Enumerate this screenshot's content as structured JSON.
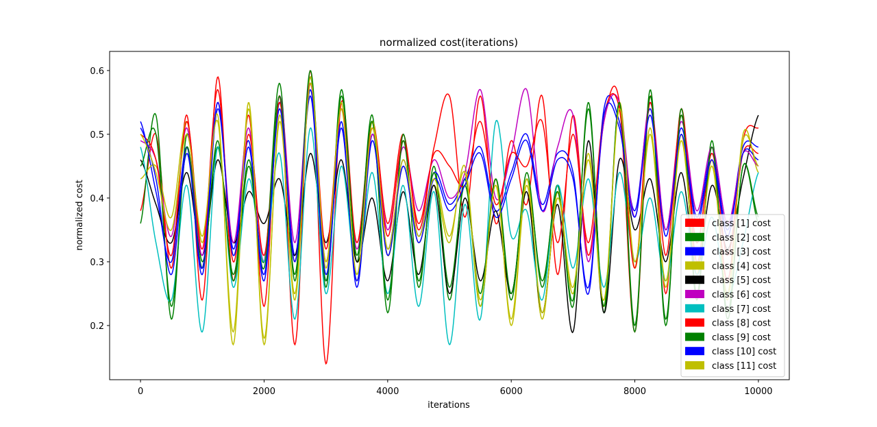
{
  "chart_data": {
    "type": "line",
    "title": "normalized cost(iterations)",
    "xlabel": "iterations",
    "ylabel": "normalized cost",
    "xlim": [
      -500,
      10500
    ],
    "ylim": [
      0.115,
      0.63
    ],
    "xticks": [
      0,
      2000,
      4000,
      6000,
      8000,
      10000
    ],
    "xtick_labels": [
      "0",
      "2000",
      "4000",
      "6000",
      "8000",
      "10000"
    ],
    "yticks": [
      0.2,
      0.3,
      0.4,
      0.5,
      0.6
    ],
    "ytick_labels": [
      "0.2",
      "0.3",
      "0.4",
      "0.5",
      "0.6"
    ],
    "grid": false,
    "legend_position": "lower-right",
    "x": [
      0,
      250,
      500,
      750,
      1000,
      1250,
      1500,
      1750,
      2000,
      2250,
      2500,
      2750,
      3000,
      3250,
      3500,
      3750,
      4000,
      4250,
      4500,
      4750,
      5000,
      5250,
      5500,
      5750,
      6000,
      6250,
      6500,
      6750,
      7000,
      7250,
      7500,
      7750,
      8000,
      8250,
      8500,
      8750,
      9000,
      9250,
      9500,
      9750,
      10000
    ],
    "series": [
      {
        "name": "class [1] cost",
        "color": "#ff0000",
        "values": [
          0.38,
          0.5,
          0.29,
          0.53,
          0.24,
          0.59,
          0.27,
          0.53,
          0.23,
          0.56,
          0.17,
          0.6,
          0.14,
          0.55,
          0.33,
          0.52,
          0.36,
          0.5,
          0.35,
          0.48,
          0.56,
          0.37,
          0.56,
          0.36,
          0.49,
          0.39,
          0.56,
          0.28,
          0.53,
          0.31,
          0.52,
          0.55,
          0.19,
          0.56,
          0.25,
          0.54,
          0.3,
          0.46,
          0.27,
          0.49,
          0.51
        ]
      },
      {
        "name": "class [2] cost",
        "color": "#008000",
        "values": [
          0.36,
          0.53,
          0.21,
          0.5,
          0.3,
          0.48,
          0.28,
          0.46,
          0.3,
          0.58,
          0.27,
          0.59,
          0.26,
          0.57,
          0.3,
          0.53,
          0.22,
          0.5,
          0.26,
          0.45,
          0.24,
          0.43,
          0.23,
          0.43,
          0.24,
          0.44,
          0.26,
          0.42,
          0.23,
          0.55,
          0.22,
          0.55,
          0.19,
          0.57,
          0.2,
          0.54,
          0.24,
          0.49,
          0.21,
          0.45,
          0.36
        ]
      },
      {
        "name": "class [3] cost",
        "color": "#0000ff",
        "values": [
          0.52,
          0.41,
          0.3,
          0.48,
          0.28,
          0.54,
          0.32,
          0.49,
          0.27,
          0.55,
          0.31,
          0.56,
          0.27,
          0.52,
          0.26,
          0.5,
          0.32,
          0.46,
          0.34,
          0.44,
          0.39,
          0.43,
          0.48,
          0.38,
          0.44,
          0.5,
          0.39,
          0.47,
          0.44,
          0.25,
          0.54,
          0.52,
          0.38,
          0.54,
          0.35,
          0.51,
          0.37,
          0.47,
          0.35,
          0.48,
          0.48
        ]
      },
      {
        "name": "class [4] cost",
        "color": "#bfbf00",
        "values": [
          0.43,
          0.45,
          0.37,
          0.52,
          0.33,
          0.53,
          0.17,
          0.55,
          0.17,
          0.53,
          0.24,
          0.59,
          0.29,
          0.55,
          0.27,
          0.52,
          0.31,
          0.45,
          0.33,
          0.42,
          0.33,
          0.45,
          0.23,
          0.43,
          0.2,
          0.42,
          0.21,
          0.41,
          0.25,
          0.47,
          0.23,
          0.55,
          0.29,
          0.51,
          0.26,
          0.5,
          0.28,
          0.46,
          0.24,
          0.5,
          0.44
        ]
      },
      {
        "name": "class [5] cost",
        "color": "#000000",
        "values": [
          0.46,
          0.39,
          0.33,
          0.44,
          0.31,
          0.46,
          0.33,
          0.41,
          0.36,
          0.43,
          0.31,
          0.47,
          0.33,
          0.46,
          0.3,
          0.4,
          0.27,
          0.41,
          0.28,
          0.42,
          0.25,
          0.4,
          0.27,
          0.38,
          0.25,
          0.41,
          0.22,
          0.39,
          0.19,
          0.49,
          0.22,
          0.46,
          0.35,
          0.43,
          0.3,
          0.44,
          0.29,
          0.42,
          0.32,
          0.43,
          0.53
        ]
      },
      {
        "name": "class [6] cost",
        "color": "#bf00bf",
        "values": [
          0.49,
          0.46,
          0.34,
          0.51,
          0.31,
          0.55,
          0.33,
          0.51,
          0.3,
          0.56,
          0.33,
          0.58,
          0.3,
          0.54,
          0.32,
          0.5,
          0.35,
          0.48,
          0.38,
          0.46,
          0.4,
          0.44,
          0.57,
          0.4,
          0.47,
          0.57,
          0.38,
          0.48,
          0.53,
          0.3,
          0.52,
          0.55,
          0.37,
          0.55,
          0.35,
          0.52,
          0.38,
          0.48,
          0.36,
          0.47,
          0.45
        ]
      },
      {
        "name": "class [7] cost",
        "color": "#00bfbf",
        "values": [
          0.48,
          0.33,
          0.24,
          0.42,
          0.19,
          0.48,
          0.26,
          0.43,
          0.3,
          0.47,
          0.21,
          0.51,
          0.25,
          0.45,
          0.28,
          0.44,
          0.25,
          0.42,
          0.23,
          0.41,
          0.17,
          0.39,
          0.21,
          0.52,
          0.34,
          0.38,
          0.24,
          0.42,
          0.29,
          0.43,
          0.26,
          0.44,
          0.3,
          0.4,
          0.27,
          0.41,
          0.28,
          0.37,
          0.25,
          0.33,
          0.44
        ]
      },
      {
        "name": "class [8] cost",
        "color": "#ff0000",
        "values": [
          0.5,
          0.46,
          0.31,
          0.52,
          0.32,
          0.57,
          0.3,
          0.5,
          0.31,
          0.55,
          0.3,
          0.58,
          0.32,
          0.54,
          0.33,
          0.51,
          0.34,
          0.49,
          0.36,
          0.47,
          0.45,
          0.42,
          0.52,
          0.39,
          0.47,
          0.45,
          0.52,
          0.33,
          0.5,
          0.33,
          0.53,
          0.54,
          0.29,
          0.55,
          0.31,
          0.53,
          0.33,
          0.47,
          0.31,
          0.47,
          0.47
        ]
      },
      {
        "name": "class [9] cost",
        "color": "#008000",
        "values": [
          0.45,
          0.5,
          0.23,
          0.48,
          0.29,
          0.49,
          0.27,
          0.45,
          0.29,
          0.56,
          0.28,
          0.6,
          0.27,
          0.56,
          0.31,
          0.52,
          0.24,
          0.49,
          0.27,
          0.44,
          0.26,
          0.42,
          0.25,
          0.43,
          0.25,
          0.43,
          0.27,
          0.41,
          0.24,
          0.54,
          0.23,
          0.55,
          0.2,
          0.56,
          0.21,
          0.53,
          0.25,
          0.48,
          0.22,
          0.45,
          0.37
        ]
      },
      {
        "name": "class [10] cost",
        "color": "#0000ff",
        "values": [
          0.51,
          0.43,
          0.28,
          0.47,
          0.29,
          0.55,
          0.31,
          0.48,
          0.28,
          0.54,
          0.3,
          0.57,
          0.28,
          0.51,
          0.27,
          0.49,
          0.31,
          0.45,
          0.33,
          0.43,
          0.38,
          0.42,
          0.47,
          0.37,
          0.43,
          0.49,
          0.38,
          0.46,
          0.43,
          0.26,
          0.53,
          0.51,
          0.37,
          0.53,
          0.34,
          0.5,
          0.36,
          0.46,
          0.34,
          0.47,
          0.46
        ]
      },
      {
        "name": "class [11] cost",
        "color": "#bfbf00",
        "values": [
          0.5,
          0.44,
          0.35,
          0.5,
          0.34,
          0.52,
          0.19,
          0.54,
          0.18,
          0.52,
          0.25,
          0.58,
          0.3,
          0.54,
          0.28,
          0.51,
          0.32,
          0.46,
          0.34,
          0.43,
          0.34,
          0.44,
          0.24,
          0.42,
          0.21,
          0.43,
          0.22,
          0.4,
          0.26,
          0.46,
          0.24,
          0.54,
          0.3,
          0.5,
          0.27,
          0.49,
          0.29,
          0.45,
          0.25,
          0.49,
          0.45
        ]
      }
    ]
  }
}
